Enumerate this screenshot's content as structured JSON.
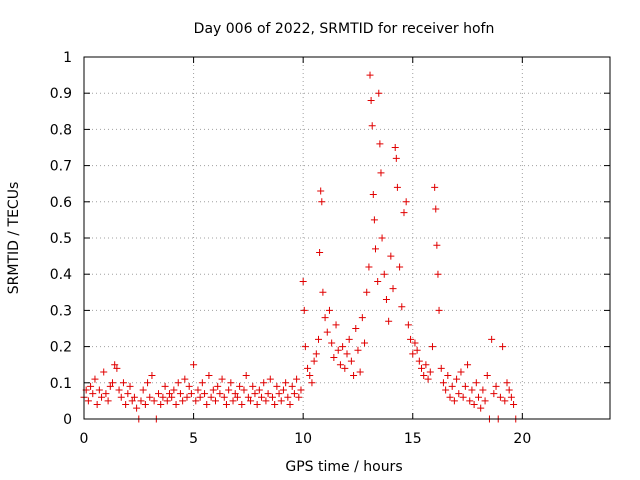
{
  "chart_data": {
    "type": "scatter",
    "title": "Day 006 of 2022, SRMTID for receiver hofn",
    "xlabel": "GPS time / hours",
    "ylabel": "SRMTID / TECUs",
    "xlim": [
      0,
      24
    ],
    "ylim": [
      0,
      1
    ],
    "x_ticks": [
      "0",
      "5",
      "10",
      "15",
      "20"
    ],
    "y_ticks": [
      "0",
      "0.1",
      "0.2",
      "0.3",
      "0.4",
      "0.5",
      "0.6",
      "0.7",
      "0.8",
      "0.9",
      "1"
    ],
    "grid": true,
    "marker": "+",
    "color": "#e00000",
    "series": [
      {
        "name": "SRMTID",
        "points": [
          [
            0.0,
            0.06
          ],
          [
            0.1,
            0.08
          ],
          [
            0.2,
            0.05
          ],
          [
            0.3,
            0.09
          ],
          [
            0.4,
            0.07
          ],
          [
            0.5,
            0.11
          ],
          [
            0.6,
            0.04
          ],
          [
            0.7,
            0.08
          ],
          [
            0.8,
            0.06
          ],
          [
            0.9,
            0.13
          ],
          [
            1.0,
            0.07
          ],
          [
            1.1,
            0.05
          ],
          [
            1.2,
            0.09
          ],
          [
            1.3,
            0.1
          ],
          [
            1.4,
            0.15
          ],
          [
            1.5,
            0.14
          ],
          [
            1.6,
            0.08
          ],
          [
            1.7,
            0.06
          ],
          [
            1.8,
            0.1
          ],
          [
            1.9,
            0.04
          ],
          [
            2.0,
            0.07
          ],
          [
            2.1,
            0.09
          ],
          [
            2.2,
            0.05
          ],
          [
            2.3,
            0.06
          ],
          [
            2.4,
            0.03
          ],
          [
            2.5,
            0.0
          ],
          [
            2.6,
            0.05
          ],
          [
            2.7,
            0.08
          ],
          [
            2.8,
            0.04
          ],
          [
            2.9,
            0.1
          ],
          [
            3.0,
            0.06
          ],
          [
            3.1,
            0.12
          ],
          [
            3.2,
            0.05
          ],
          [
            3.3,
            0.0
          ],
          [
            3.4,
            0.07
          ],
          [
            3.5,
            0.04
          ],
          [
            3.6,
            0.06
          ],
          [
            3.7,
            0.09
          ],
          [
            3.8,
            0.05
          ],
          [
            3.9,
            0.07
          ],
          [
            4.0,
            0.06
          ],
          [
            4.1,
            0.08
          ],
          [
            4.2,
            0.04
          ],
          [
            4.3,
            0.1
          ],
          [
            4.4,
            0.07
          ],
          [
            4.5,
            0.05
          ],
          [
            4.6,
            0.11
          ],
          [
            4.7,
            0.06
          ],
          [
            4.8,
            0.09
          ],
          [
            4.9,
            0.07
          ],
          [
            5.0,
            0.15
          ],
          [
            5.1,
            0.05
          ],
          [
            5.2,
            0.08
          ],
          [
            5.3,
            0.06
          ],
          [
            5.4,
            0.1
          ],
          [
            5.5,
            0.07
          ],
          [
            5.6,
            0.04
          ],
          [
            5.7,
            0.12
          ],
          [
            5.8,
            0.06
          ],
          [
            5.9,
            0.08
          ],
          [
            6.0,
            0.05
          ],
          [
            6.1,
            0.09
          ],
          [
            6.2,
            0.07
          ],
          [
            6.3,
            0.11
          ],
          [
            6.4,
            0.06
          ],
          [
            6.5,
            0.04
          ],
          [
            6.6,
            0.08
          ],
          [
            6.7,
            0.1
          ],
          [
            6.8,
            0.05
          ],
          [
            6.9,
            0.07
          ],
          [
            7.0,
            0.06
          ],
          [
            7.1,
            0.09
          ],
          [
            7.2,
            0.04
          ],
          [
            7.3,
            0.08
          ],
          [
            7.4,
            0.12
          ],
          [
            7.5,
            0.06
          ],
          [
            7.6,
            0.05
          ],
          [
            7.7,
            0.09
          ],
          [
            7.8,
            0.07
          ],
          [
            7.9,
            0.04
          ],
          [
            8.0,
            0.08
          ],
          [
            8.1,
            0.06
          ],
          [
            8.2,
            0.1
          ],
          [
            8.3,
            0.05
          ],
          [
            8.4,
            0.07
          ],
          [
            8.5,
            0.11
          ],
          [
            8.6,
            0.06
          ],
          [
            8.7,
            0.04
          ],
          [
            8.8,
            0.09
          ],
          [
            8.9,
            0.07
          ],
          [
            9.0,
            0.05
          ],
          [
            9.1,
            0.08
          ],
          [
            9.2,
            0.1
          ],
          [
            9.3,
            0.06
          ],
          [
            9.4,
            0.04
          ],
          [
            9.5,
            0.09
          ],
          [
            9.6,
            0.07
          ],
          [
            9.7,
            0.11
          ],
          [
            9.8,
            0.06
          ],
          [
            9.9,
            0.08
          ],
          [
            10.0,
            0.38
          ],
          [
            10.05,
            0.3
          ],
          [
            10.1,
            0.2
          ],
          [
            10.2,
            0.14
          ],
          [
            10.3,
            0.12
          ],
          [
            10.4,
            0.1
          ],
          [
            10.5,
            0.16
          ],
          [
            10.6,
            0.18
          ],
          [
            10.7,
            0.22
          ],
          [
            10.75,
            0.46
          ],
          [
            10.8,
            0.63
          ],
          [
            10.85,
            0.6
          ],
          [
            10.9,
            0.35
          ],
          [
            11.0,
            0.28
          ],
          [
            11.1,
            0.24
          ],
          [
            11.2,
            0.3
          ],
          [
            11.3,
            0.21
          ],
          [
            11.4,
            0.17
          ],
          [
            11.5,
            0.26
          ],
          [
            11.6,
            0.19
          ],
          [
            11.7,
            0.15
          ],
          [
            11.8,
            0.2
          ],
          [
            11.9,
            0.14
          ],
          [
            12.0,
            0.18
          ],
          [
            12.1,
            0.22
          ],
          [
            12.2,
            0.16
          ],
          [
            12.3,
            0.12
          ],
          [
            12.4,
            0.25
          ],
          [
            12.5,
            0.19
          ],
          [
            12.6,
            0.13
          ],
          [
            12.7,
            0.28
          ],
          [
            12.8,
            0.21
          ],
          [
            12.9,
            0.35
          ],
          [
            13.0,
            0.42
          ],
          [
            13.05,
            0.95
          ],
          [
            13.1,
            0.88
          ],
          [
            13.15,
            0.81
          ],
          [
            13.2,
            0.62
          ],
          [
            13.25,
            0.55
          ],
          [
            13.3,
            0.47
          ],
          [
            13.4,
            0.38
          ],
          [
            13.45,
            0.9
          ],
          [
            13.5,
            0.76
          ],
          [
            13.55,
            0.68
          ],
          [
            13.6,
            0.5
          ],
          [
            13.7,
            0.4
          ],
          [
            13.8,
            0.33
          ],
          [
            13.9,
            0.27
          ],
          [
            14.0,
            0.45
          ],
          [
            14.1,
            0.36
          ],
          [
            14.2,
            0.75
          ],
          [
            14.25,
            0.72
          ],
          [
            14.3,
            0.64
          ],
          [
            14.4,
            0.42
          ],
          [
            14.5,
            0.31
          ],
          [
            14.6,
            0.57
          ],
          [
            14.7,
            0.6
          ],
          [
            14.8,
            0.26
          ],
          [
            14.9,
            0.22
          ],
          [
            15.0,
            0.18
          ],
          [
            15.1,
            0.21
          ],
          [
            15.2,
            0.19
          ],
          [
            15.3,
            0.16
          ],
          [
            15.4,
            0.14
          ],
          [
            15.5,
            0.12
          ],
          [
            15.6,
            0.15
          ],
          [
            15.7,
            0.11
          ],
          [
            15.8,
            0.13
          ],
          [
            15.9,
            0.2
          ],
          [
            16.0,
            0.64
          ],
          [
            16.05,
            0.58
          ],
          [
            16.1,
            0.48
          ],
          [
            16.15,
            0.4
          ],
          [
            16.2,
            0.3
          ],
          [
            16.3,
            0.14
          ],
          [
            16.4,
            0.1
          ],
          [
            16.5,
            0.08
          ],
          [
            16.6,
            0.12
          ],
          [
            16.7,
            0.06
          ],
          [
            16.8,
            0.09
          ],
          [
            16.9,
            0.05
          ],
          [
            17.0,
            0.11
          ],
          [
            17.1,
            0.07
          ],
          [
            17.2,
            0.13
          ],
          [
            17.3,
            0.06
          ],
          [
            17.4,
            0.09
          ],
          [
            17.5,
            0.15
          ],
          [
            17.6,
            0.05
          ],
          [
            17.7,
            0.08
          ],
          [
            17.8,
            0.04
          ],
          [
            17.9,
            0.1
          ],
          [
            18.0,
            0.06
          ],
          [
            18.1,
            0.03
          ],
          [
            18.2,
            0.08
          ],
          [
            18.3,
            0.05
          ],
          [
            18.4,
            0.12
          ],
          [
            18.5,
            0.0
          ],
          [
            18.6,
            0.22
          ],
          [
            18.7,
            0.07
          ],
          [
            18.8,
            0.09
          ],
          [
            18.9,
            0.0
          ],
          [
            19.0,
            0.06
          ],
          [
            19.1,
            0.2
          ],
          [
            19.2,
            0.05
          ],
          [
            19.3,
            0.1
          ],
          [
            19.4,
            0.08
          ],
          [
            19.5,
            0.06
          ],
          [
            19.6,
            0.04
          ],
          [
            19.7,
            0.0
          ]
        ]
      }
    ]
  }
}
